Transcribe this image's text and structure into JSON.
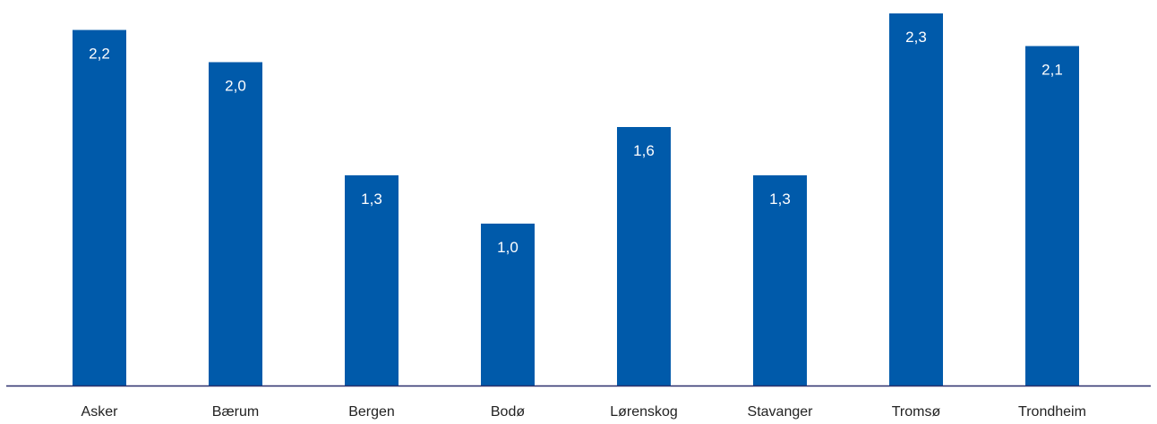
{
  "chart_data": {
    "type": "bar",
    "categories": [
      "Asker",
      "Bærum",
      "Bergen",
      "Bodø",
      "Lørenskog",
      "Stavanger",
      "Tromsø",
      "Trondheim"
    ],
    "values": [
      2.2,
      2.0,
      1.3,
      1.0,
      1.6,
      1.3,
      2.3,
      2.1
    ],
    "value_labels": [
      "2,2",
      "2,0",
      "1,3",
      "1,0",
      "1,6",
      "1,3",
      "2,3",
      "2,1"
    ],
    "title": "",
    "xlabel": "",
    "ylabel": "",
    "ylim": [
      0,
      2.34
    ],
    "grid": false,
    "legend": "none",
    "bar_color": "#005AAA",
    "axis_color": "#2B2F6B"
  }
}
